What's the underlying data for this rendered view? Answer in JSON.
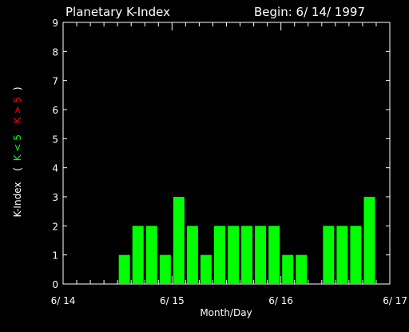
{
  "chart_data": {
    "type": "bar",
    "title": "Planetary K-Index",
    "begin_label": "Begin: 6/ 14/ 1997",
    "xlabel": "Month/Day",
    "ylabel_parts": {
      "main": "K-Index",
      "open": "(",
      "green": "K < 5",
      "red": "K > 5",
      "close": ")"
    },
    "ylim": [
      0,
      9
    ],
    "yticks": [
      "0",
      "1",
      "2",
      "3",
      "4",
      "5",
      "6",
      "7",
      "8",
      "9"
    ],
    "xlim": [
      0,
      24
    ],
    "xtick_labels": [
      {
        "x": 0,
        "label": "6/ 14"
      },
      {
        "x": 8,
        "label": "6/ 15"
      },
      {
        "x": 16,
        "label": "6/ 16"
      },
      {
        "x": 24,
        "label": "6/ 17"
      }
    ],
    "values": [
      0,
      0,
      0,
      0,
      1,
      2,
      2,
      1,
      3,
      2,
      1,
      2,
      2,
      2,
      2,
      2,
      1,
      1,
      0,
      2,
      2,
      2,
      3,
      0
    ],
    "colors": {
      "low": "#00ff00",
      "high": "#ff0000",
      "axis": "#ffffff",
      "background": "#000000"
    }
  }
}
